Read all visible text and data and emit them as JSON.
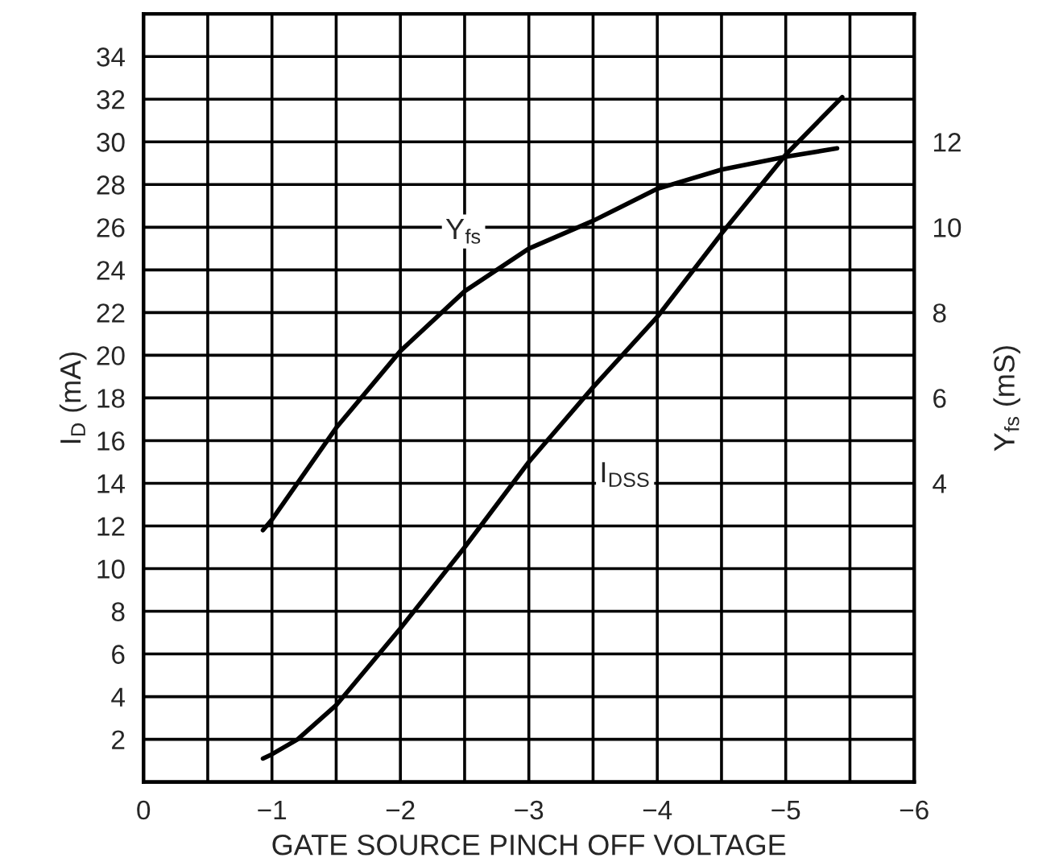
{
  "chart_data": {
    "type": "line",
    "xlabel": "GATE SOURCE PINCH OFF VOLTAGE",
    "ylabel": "I$_{D}$ (mA)",
    "y2label": "Y$_{fs}$ (mS)",
    "xlim": [
      0,
      -6
    ],
    "ylim": [
      0,
      36
    ],
    "y2lim": [
      -3,
      15
    ],
    "xticks": [
      0,
      {
        "value": -0.5,
        "label": null
      },
      {
        "value": -1,
        "label": "−1"
      },
      {
        "value": -1.5,
        "label": null
      },
      {
        "value": -2,
        "label": "−2"
      },
      {
        "value": -2.5,
        "label": null
      },
      {
        "value": -3,
        "label": "−3"
      },
      {
        "value": -3.5,
        "label": null
      },
      {
        "value": -4,
        "label": "−4"
      },
      {
        "value": -4.5,
        "label": null
      },
      {
        "value": -5,
        "label": "−5"
      },
      {
        "value": -5.5,
        "label": null
      },
      {
        "value": -6,
        "label": "−6"
      }
    ],
    "yticks": [
      2,
      4,
      6,
      8,
      10,
      12,
      14,
      16,
      18,
      20,
      22,
      24,
      26,
      28,
      30,
      32,
      34
    ],
    "y2ticks": [
      4,
      6,
      8,
      10,
      12
    ],
    "grid": true,
    "legend": false,
    "marker": "none",
    "line_style": "solid",
    "series": [
      {
        "name": "Y$_{fs}$",
        "color": "#000000",
        "axis": "y2",
        "x": [
          -0.93,
          -1,
          -1.5,
          -2,
          -2.5,
          -3,
          -3.5,
          -4,
          -4.5,
          -5,
          -5.4
        ],
        "values": [
          2.9,
          3.15,
          5.3,
          7.1,
          8.5,
          9.5,
          10.15,
          10.9,
          11.35,
          11.65,
          11.85
        ]
      },
      {
        "name": "I$_{DSS}$",
        "color": "#000000",
        "x": [
          -0.93,
          -1,
          -1.2,
          -1.5,
          -2,
          -2.5,
          -3,
          -3.5,
          -4,
          -4.5,
          -5,
          -5.44
        ],
        "values": [
          1.1,
          1.3,
          2,
          3.6,
          7.2,
          11,
          15,
          18.5,
          21.8,
          25.7,
          29.4,
          32.1
        ]
      }
    ]
  }
}
